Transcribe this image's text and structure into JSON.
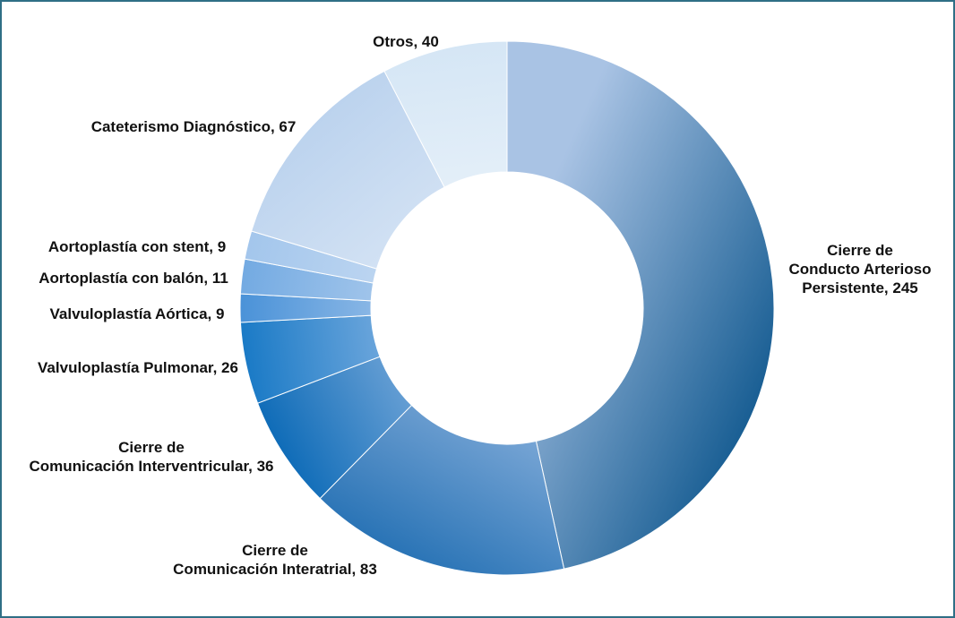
{
  "chart_data": {
    "type": "pie",
    "donut": true,
    "title": "",
    "slices": [
      {
        "label_lines": [
          "Cierre de",
          "Conducto Arterioso",
          "Persistente, 245"
        ],
        "label": "Cierre de Conducto Arterioso Persistente",
        "value": 245,
        "color_light": "#a9c3e4",
        "color_dark": "#1a5f94"
      },
      {
        "label_lines": [
          "Cierre de",
          "Comunicación Interatrial, 83"
        ],
        "label": "Cierre de Comunicación Interatrial",
        "value": 83,
        "color_light": "#9dbde4",
        "color_dark": "#2a74b6"
      },
      {
        "label_lines": [
          "Cierre de",
          "Comunicación Interventricular, 36"
        ],
        "label": "Cierre de Comunicación Interventricular",
        "value": 36,
        "color_light": "#a5c3e8",
        "color_dark": "#0f6cb8"
      },
      {
        "label_lines": [
          "Valvuloplastía Pulmonar, 26"
        ],
        "label": "Valvuloplastía Pulmonar",
        "value": 26,
        "color_light": "#a8c6ec",
        "color_dark": "#1a7ac6"
      },
      {
        "label_lines": [
          "Valvuloplastía Aórtica, 9"
        ],
        "label": "Valvuloplastía Aórtica",
        "value": 9,
        "color_light": "#bcd4f0",
        "color_dark": "#4a92d8"
      },
      {
        "label_lines": [
          "Aortoplastía con balón, 11"
        ],
        "label": "Aortoplastía con balón",
        "value": 11,
        "color_light": "#c4d9f1",
        "color_dark": "#73aae2"
      },
      {
        "label_lines": [
          "Aortoplastía con stent, 9"
        ],
        "label": "Aortoplastía con stent",
        "value": 9,
        "color_light": "#cfe0f4",
        "color_dark": "#a3c6ec"
      },
      {
        "label_lines": [
          "Cateterismo Diagnóstico, 67"
        ],
        "label": "Cateterismo Diagnóstico",
        "value": 67,
        "color_light": "#dfeaf7",
        "color_dark": "#bcd3ee"
      },
      {
        "label_lines": [
          "Otros, 40"
        ],
        "label": "Otros",
        "value": 40,
        "color_light": "#eef5fb",
        "color_dark": "#d5e6f5"
      }
    ]
  }
}
